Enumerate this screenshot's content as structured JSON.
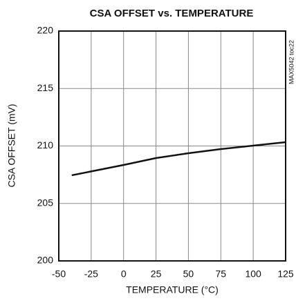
{
  "chart_data": {
    "type": "line",
    "title": "CSA OFFSET vs. TEMPERATURE",
    "x_label": "TEMPERATURE (°C)",
    "y_label": "CSA OFFSET (mV)",
    "annotation": "MAX5042 toc22",
    "x": [
      -40,
      0,
      25,
      50,
      75,
      100,
      125
    ],
    "series": [
      {
        "name": "CSA OFFSET",
        "color": "#111111",
        "values": [
          207.45,
          208.35,
          208.95,
          209.37,
          209.73,
          210.03,
          210.33
        ]
      }
    ],
    "xlim": [
      -50,
      125
    ],
    "xticks": [
      -50,
      -25,
      0,
      25,
      50,
      75,
      100,
      125
    ],
    "ylim": [
      200,
      220
    ],
    "yticks": [
      200,
      205,
      210,
      215,
      220
    ],
    "grid": true
  }
}
